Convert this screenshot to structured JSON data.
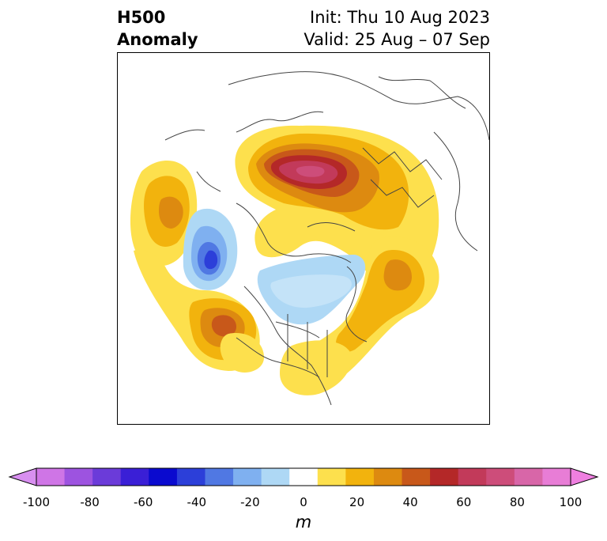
{
  "title": {
    "left_line1": "H500",
    "left_line2": "Anomaly",
    "right_line1": "Init: Thu 10 Aug 2023",
    "right_line2": "Valid: 25 Aug – 07 Sep"
  },
  "map": {
    "projection": "polar stereographic",
    "region": "Northern Hemisphere centered on North Pole / North America",
    "anomaly_features": [
      {
        "label": "strong positive center",
        "location": "northern Eurasia / Siberia",
        "max_m": 80
      },
      {
        "label": "positive center",
        "location": "North Pacific west",
        "max_m": 40
      },
      {
        "label": "positive center",
        "location": "Gulf of Alaska / NE Pacific",
        "max_m": 50
      },
      {
        "label": "positive center",
        "location": "North Atlantic",
        "max_m": 40
      },
      {
        "label": "positive",
        "location": "eastern North America",
        "max_m": 20
      },
      {
        "label": "negative center",
        "location": "Bering Sea",
        "min_m": -40
      },
      {
        "label": "negative",
        "location": "Canadian Arctic / Hudson Bay",
        "min_m": -20
      }
    ]
  },
  "colorbar": {
    "units": "m",
    "ticks": [
      "-100",
      "-80",
      "-60",
      "-40",
      "-20",
      "0",
      "20",
      "40",
      "60",
      "80",
      "100"
    ],
    "levels": [
      -100,
      -90,
      -80,
      -70,
      -60,
      -50,
      -40,
      -30,
      -20,
      -10,
      10,
      20,
      30,
      40,
      50,
      60,
      70,
      80,
      90,
      100
    ],
    "colors": [
      "#cf75e6",
      "#9d53e0",
      "#6b3bd9",
      "#3a1fd6",
      "#0a0acf",
      "#2c3fd9",
      "#5078e3",
      "#7fb0f0",
      "#aed8f5",
      "#ffffff",
      "#fde04d",
      "#f2b30d",
      "#dd8a10",
      "#c8581a",
      "#b42828",
      "#c23a5a",
      "#cd4d7a",
      "#d866a8",
      "#e87dd6"
    ],
    "extend_low_color": "#d88ff0",
    "extend_high_color": "#ef7fe0"
  }
}
